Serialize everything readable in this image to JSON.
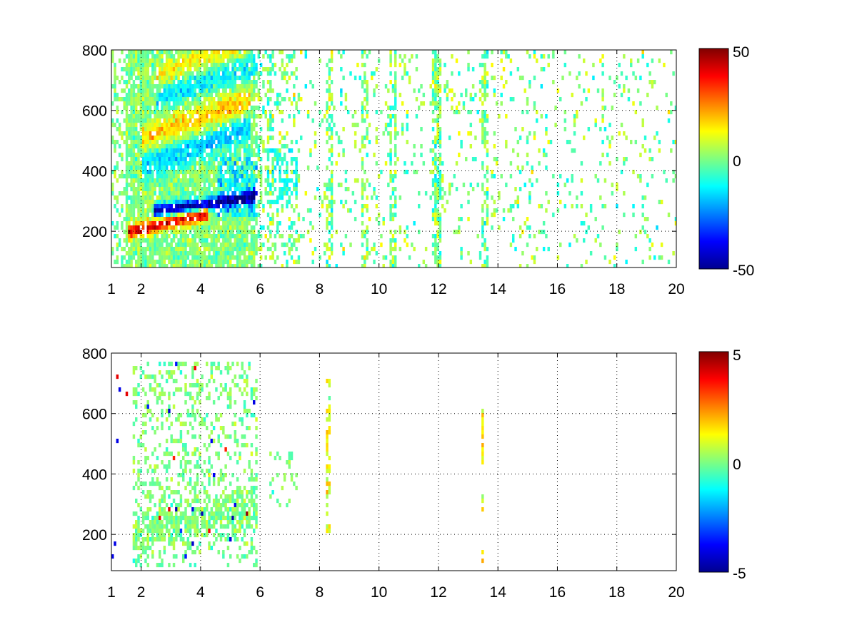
{
  "colormap": "jet",
  "jet_stops": [
    "#00008f",
    "#0000ff",
    "#00ffff",
    "#ffff00",
    "#ff0000",
    "#800000"
  ],
  "chart_data": [
    {
      "type": "heatmap",
      "panel": "top",
      "title": "",
      "xlabel": "",
      "ylabel": "",
      "xlim": [
        1,
        20
      ],
      "ylim": [
        80,
        800
      ],
      "xticks": [
        "1",
        "2",
        "4",
        "6",
        "8",
        "10",
        "12",
        "14",
        "16",
        "18",
        "20"
      ],
      "yticks": [
        "200",
        "400",
        "600",
        "800"
      ],
      "grid": "dotted",
      "colorbar": {
        "range": [
          -50,
          50
        ],
        "ticks": [
          "-50",
          "0",
          "50"
        ],
        "placement": "right"
      },
      "features": [
        {
          "description": "positive band",
          "x_range": [
            1.5,
            4.0
          ],
          "y_center_start": 205,
          "y_center_end": 300,
          "value": 40
        },
        {
          "description": "negative band",
          "x_range": [
            2.5,
            5.8
          ],
          "y_center_start": 240,
          "y_center_end": 300,
          "value": -45
        },
        {
          "description": "mixed band",
          "x_range": [
            2.0,
            5.5
          ],
          "y_center_start": 450,
          "y_center_end": 600,
          "value": 20
        },
        {
          "description": "mixed band",
          "x_range": [
            2.5,
            6.0
          ],
          "y_center_start": 650,
          "y_center_end": 800,
          "value": 15
        }
      ],
      "sparse_columns_x": [
        8.3,
        9.5,
        10.4,
        11.9,
        13.5
      ]
    },
    {
      "type": "heatmap",
      "panel": "bottom",
      "title": "",
      "xlabel": "",
      "ylabel": "",
      "xlim": [
        1,
        20
      ],
      "ylim": [
        80,
        800
      ],
      "xticks": [
        "1",
        "2",
        "4",
        "6",
        "8",
        "10",
        "12",
        "14",
        "16",
        "18",
        "20"
      ],
      "yticks": [
        "200",
        "400",
        "600",
        "800"
      ],
      "grid": "dotted",
      "colorbar": {
        "range": [
          -5,
          5
        ],
        "ticks": [
          "-5",
          "0",
          "5"
        ],
        "placement": "right"
      },
      "features": [
        {
          "description": "dense low-amplitude region",
          "x_range": [
            1.7,
            5.9
          ],
          "y_range": [
            100,
            780
          ],
          "value": 0
        },
        {
          "description": "sparse column",
          "x_range": [
            8.2,
            8.3
          ],
          "y_range": [
            200,
            720
          ],
          "value": 1
        },
        {
          "description": "sparse column",
          "x_range": [
            13.4,
            13.5
          ],
          "y_range": [
            120,
            630
          ],
          "value": 1.5
        }
      ]
    }
  ]
}
